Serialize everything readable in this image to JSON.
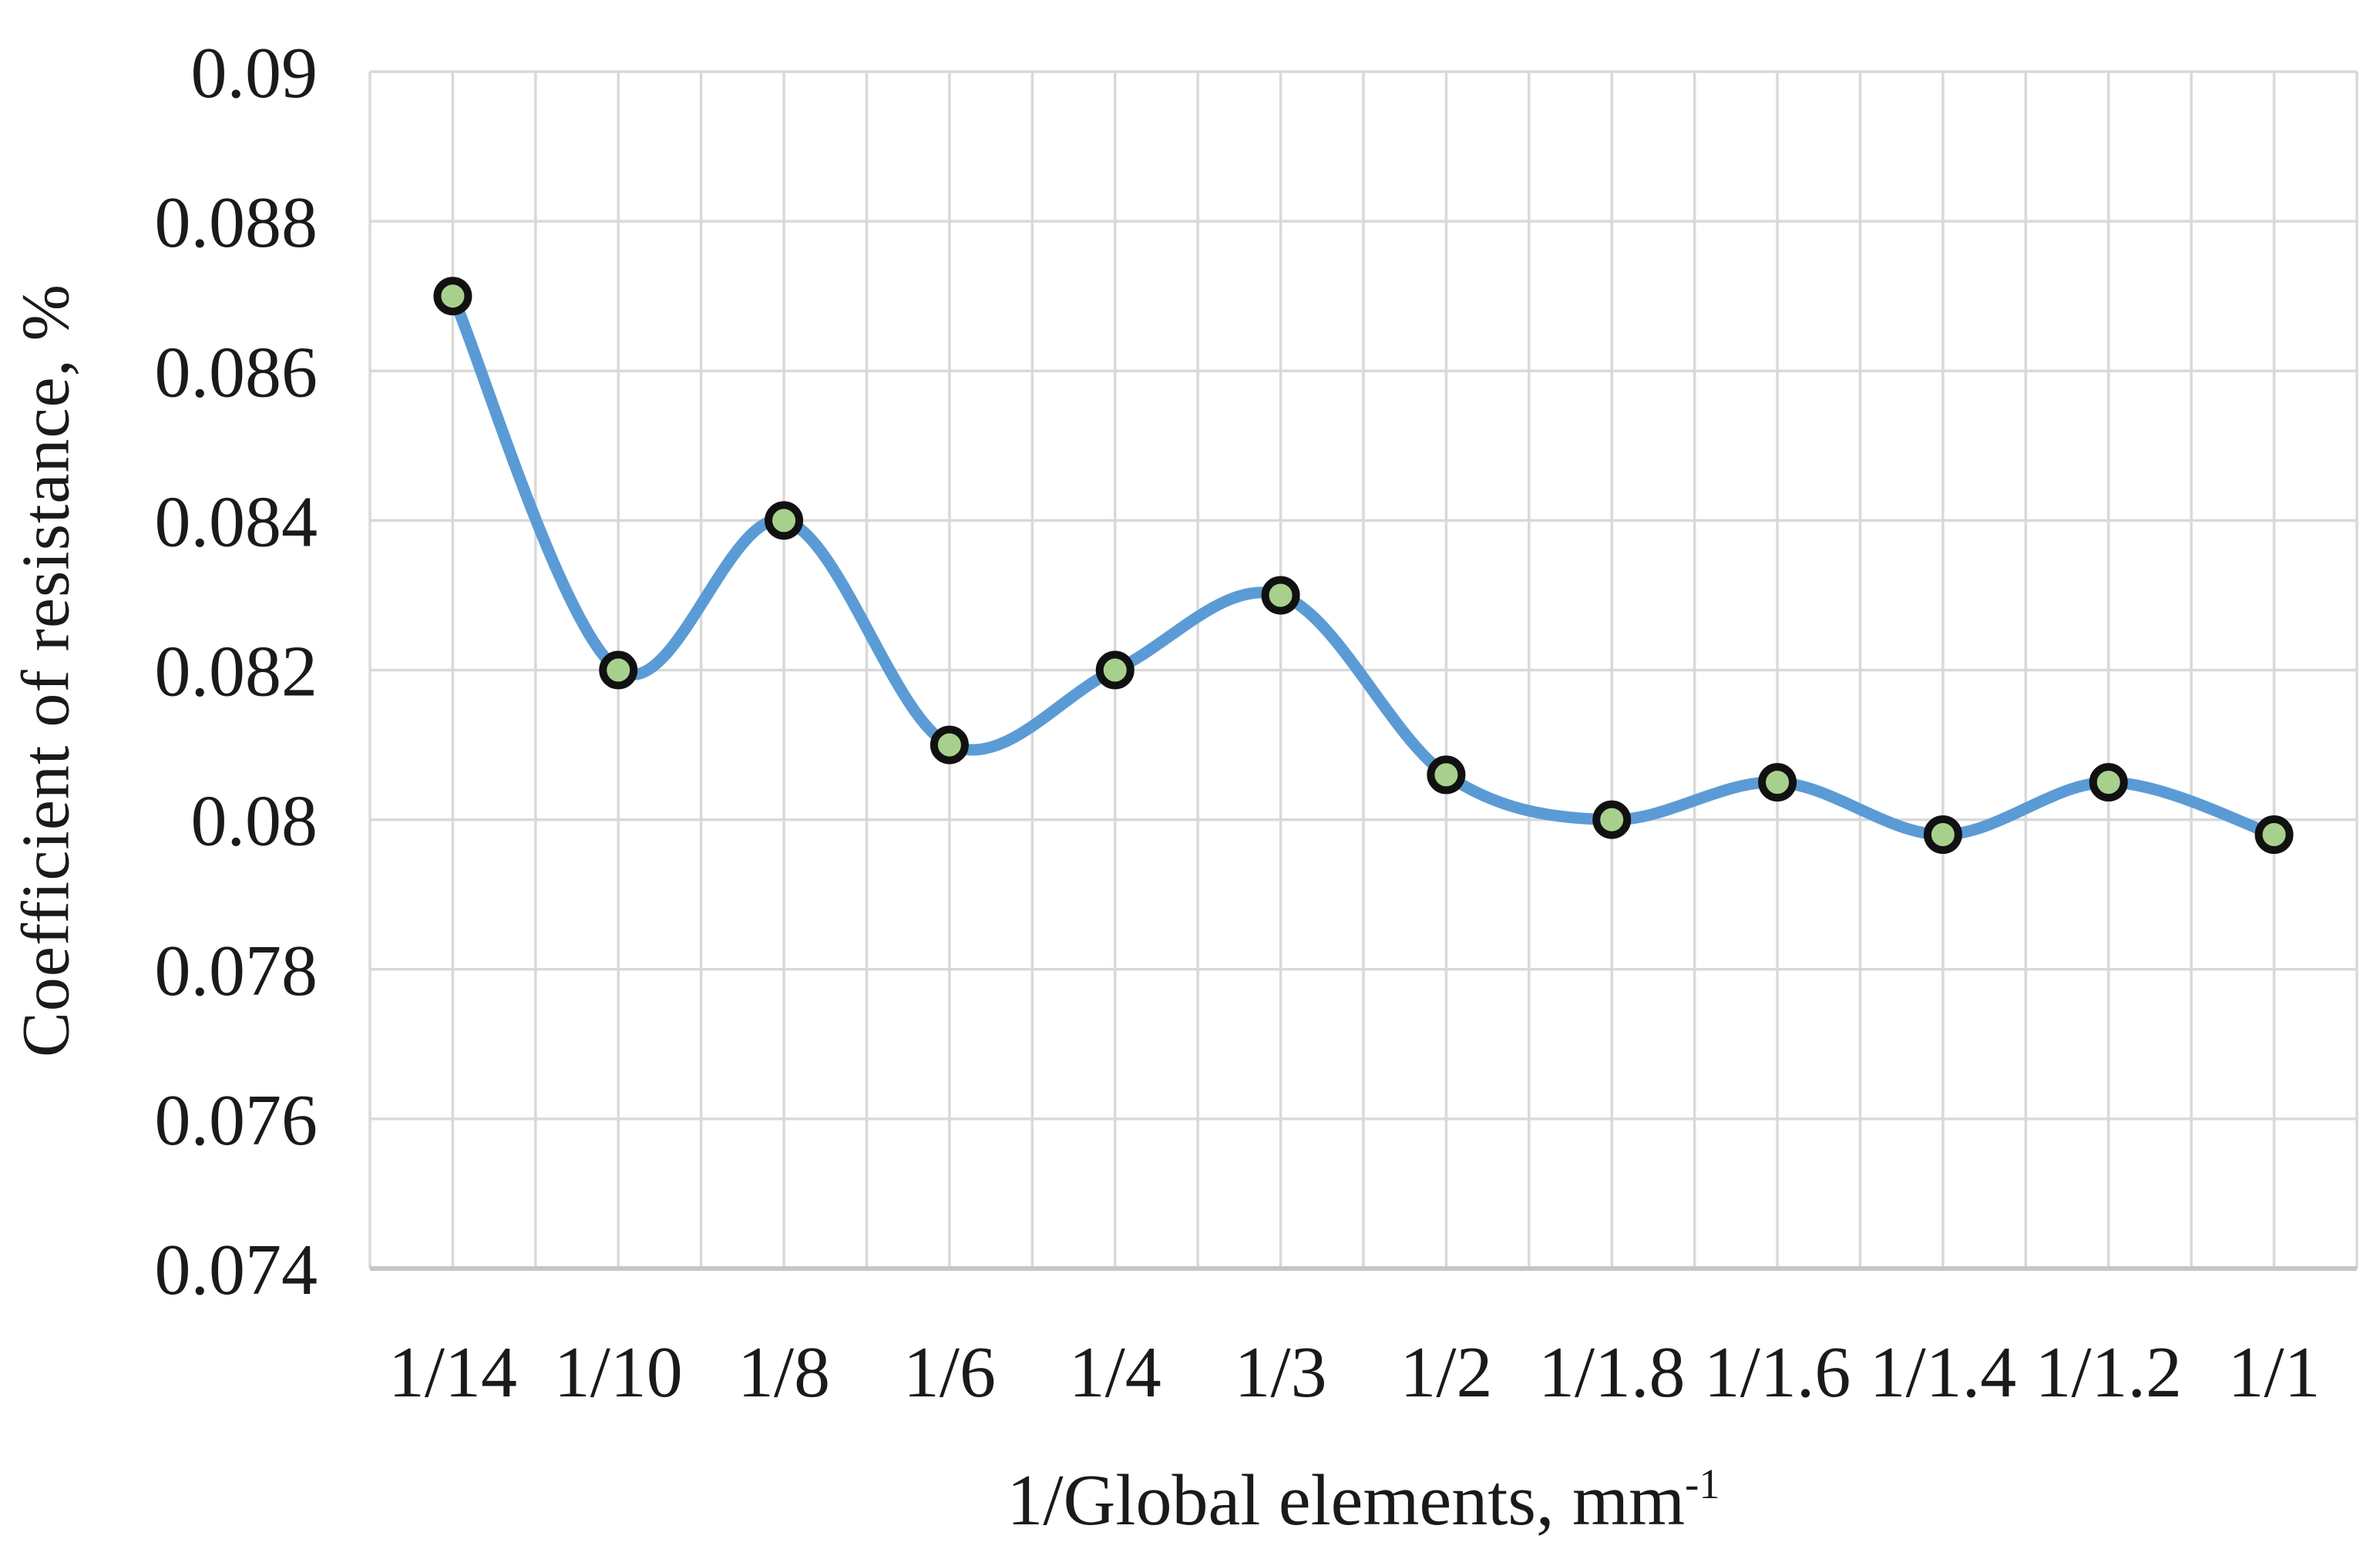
{
  "chart_data": {
    "type": "line",
    "line_style": "smooth",
    "title": "",
    "xlabel": "1/Global elements, mm",
    "xlabel_superscript": "-1",
    "ylabel": "Coefficient of resistance, %",
    "categories": [
      "1/14",
      "1/10",
      "1/8",
      "1/6",
      "1/4",
      "1/3",
      "1/2",
      "1/1.8",
      "1/1.6",
      "1/1.4",
      "1/1.2",
      "1/1"
    ],
    "values": [
      0.087,
      0.082,
      0.084,
      0.081,
      0.082,
      0.083,
      0.0806,
      0.08,
      0.0805,
      0.0798,
      0.0805,
      0.0798
    ],
    "ylim": [
      0.074,
      0.09
    ],
    "ytick_step": 0.002,
    "ytick_labels": [
      "0.09",
      "0.088",
      "0.086",
      "0.084",
      "0.082",
      "0.08",
      "0.078",
      "0.076",
      "0.074"
    ],
    "grid": {
      "horizontal": true,
      "vertical": true,
      "vertical_lines_per_category": 2
    },
    "legend_position": "none",
    "marker_shape": "circle",
    "colors": {
      "line": "#5B9BD5",
      "marker_fill": "#A8D08D",
      "marker_stroke": "#111111",
      "gridline": "#D9D9D9",
      "axis_line": "#C6C6C6",
      "text": "#1a1a1a",
      "background": "#FFFFFF"
    }
  }
}
